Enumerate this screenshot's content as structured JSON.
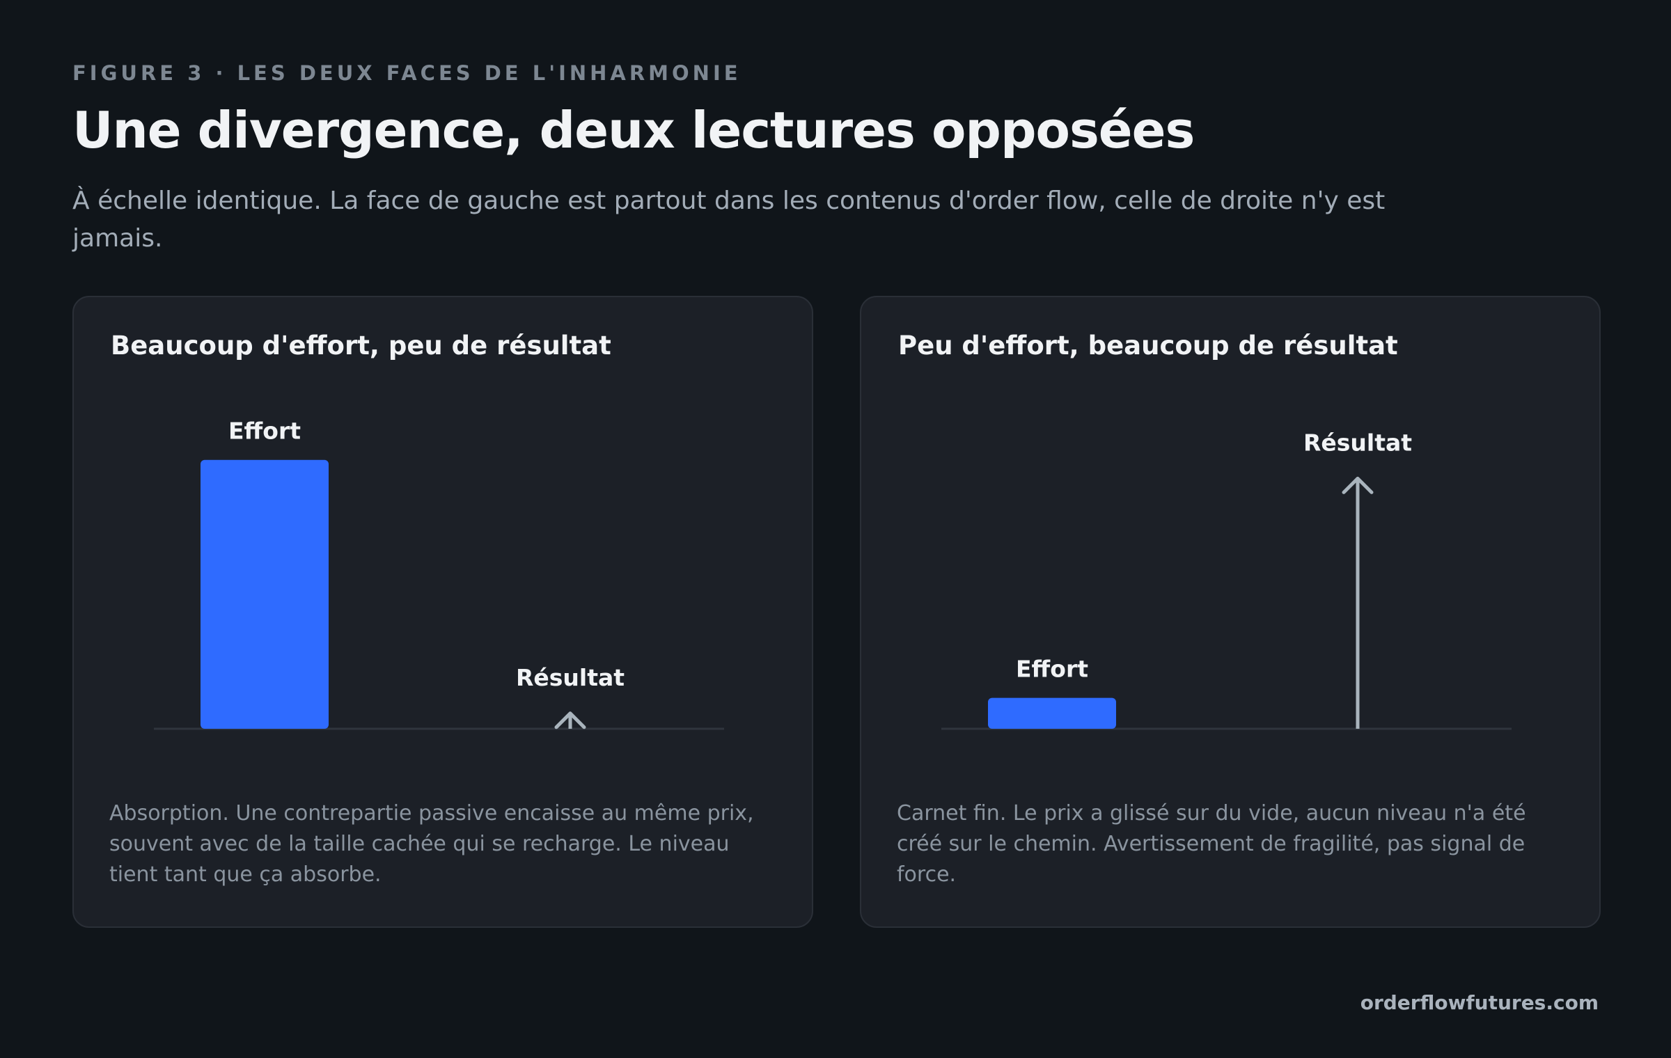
{
  "header": {
    "kicker": "FIGURE 3 · LES DEUX FACES DE L'INHARMONIE",
    "title": "Une divergence, deux lectures opposées",
    "subtitle": "À échelle identique. La face de gauche est partout dans les contenus d'order flow, celle de droite n'y est jamais."
  },
  "chart_data": [
    {
      "type": "bar",
      "title": "Beaucoup d'effort, peu de résultat",
      "categories": [
        "Effort",
        "Résultat"
      ],
      "values": [
        87,
        5
      ],
      "colors": [
        "#2f6bff",
        "#a9b4bd"
      ],
      "ylim": [
        0,
        100
      ],
      "caption": "Absorption. Une contrepartie passive encaisse au même prix, souvent avec de la taille cachée qui se recharge. Le niveau tient tant que ça absorbe."
    },
    {
      "type": "bar",
      "title": "Peu d'effort, beaucoup de résultat",
      "categories": [
        "Effort",
        "Résultat"
      ],
      "values": [
        10,
        81
      ],
      "colors": [
        "#2f6bff",
        "#a9b4bd"
      ],
      "ylim": [
        0,
        100
      ],
      "caption": "Carnet fin. Le prix a glissé sur du vide, aucun niveau n'a été créé sur le chemin. Avertissement de fragilité, pas signal de force."
    }
  ],
  "footer": "orderflowfutures.com"
}
